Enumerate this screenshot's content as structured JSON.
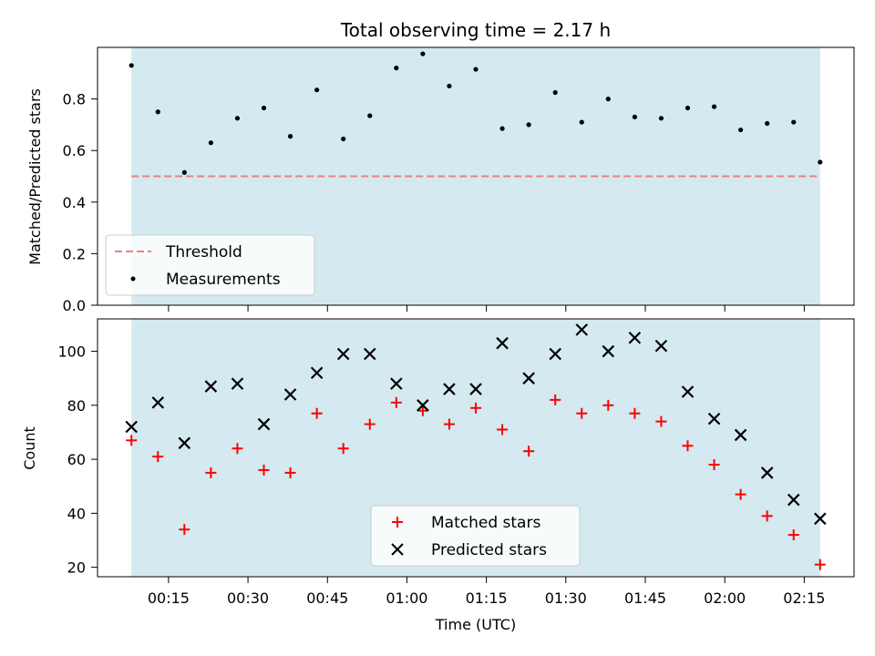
{
  "chart_data": [
    {
      "type": "scatter",
      "title": "Total observing time = 2.17 h",
      "xlabel": "",
      "ylabel": "Matched/Predicted stars",
      "ylim": [
        0,
        1
      ],
      "yticks": [
        "0.0",
        "0.2",
        "0.4",
        "0.6",
        "0.8"
      ],
      "x_unit": "minutes after 00:00 UTC",
      "shaded_span": [
        8,
        138
      ],
      "shade_color": "#d4e9f0",
      "threshold": 0.5,
      "threshold_color": "#f08080",
      "legend_position": "lower-left",
      "legend": [
        {
          "label": "Threshold",
          "marker": "dash"
        },
        {
          "label": "Measurements",
          "marker": "dot"
        }
      ],
      "series": [
        {
          "name": "Measurements",
          "color": "#000000",
          "marker": "dot",
          "x": [
            8,
            13,
            18,
            23,
            28,
            33,
            38,
            43,
            48,
            53,
            58,
            63,
            68,
            73,
            78,
            83,
            88,
            93,
            98,
            103,
            108,
            113,
            118,
            123,
            128,
            133,
            138
          ],
          "y": [
            0.93,
            0.75,
            0.515,
            0.63,
            0.725,
            0.765,
            0.655,
            0.835,
            0.645,
            0.735,
            0.92,
            0.975,
            0.85,
            0.915,
            0.685,
            0.7,
            0.825,
            0.71,
            0.8,
            0.73,
            0.725,
            0.765,
            0.77,
            0.68,
            0.705,
            0.71,
            0.555
          ]
        }
      ]
    },
    {
      "type": "scatter",
      "title": "",
      "xlabel": "Time (UTC)",
      "ylabel": "Count",
      "ylim": [
        16.5,
        112
      ],
      "yticks": [
        "20",
        "40",
        "60",
        "80",
        "100"
      ],
      "xticks": [
        "00:15",
        "00:30",
        "00:45",
        "01:00",
        "01:15",
        "01:30",
        "01:45",
        "02:00",
        "02:15"
      ],
      "x_unit": "minutes after 00:00 UTC",
      "shaded_span": [
        8,
        138
      ],
      "legend_position": "lower-center",
      "legend": [
        {
          "label": "Matched stars",
          "marker": "plus"
        },
        {
          "label": "Predicted stars",
          "marker": "x"
        }
      ],
      "series": [
        {
          "name": "Matched stars",
          "color": "#ff0000",
          "marker": "plus",
          "x": [
            8,
            13,
            18,
            23,
            28,
            33,
            38,
            43,
            48,
            53,
            58,
            63,
            68,
            73,
            78,
            83,
            88,
            93,
            98,
            103,
            108,
            113,
            118,
            123,
            128,
            133,
            138
          ],
          "y": [
            67,
            61,
            34,
            55,
            64,
            56,
            55,
            77,
            64,
            73,
            81,
            78,
            73,
            79,
            71,
            63,
            82,
            77,
            80,
            77,
            74,
            65,
            58,
            47,
            39,
            32,
            21
          ]
        },
        {
          "name": "Predicted stars",
          "color": "#000000",
          "marker": "x",
          "x": [
            8,
            13,
            18,
            23,
            28,
            33,
            38,
            43,
            48,
            53,
            58,
            63,
            68,
            73,
            78,
            83,
            88,
            93,
            98,
            103,
            108,
            113,
            118,
            123,
            128,
            133,
            138
          ],
          "y": [
            72,
            81,
            66,
            87,
            88,
            73,
            84,
            92,
            99,
            99,
            88,
            80,
            86,
            86,
            103,
            90,
            99,
            108,
            100,
            105,
            102,
            85,
            75,
            69,
            55,
            45,
            38
          ]
        }
      ]
    }
  ]
}
